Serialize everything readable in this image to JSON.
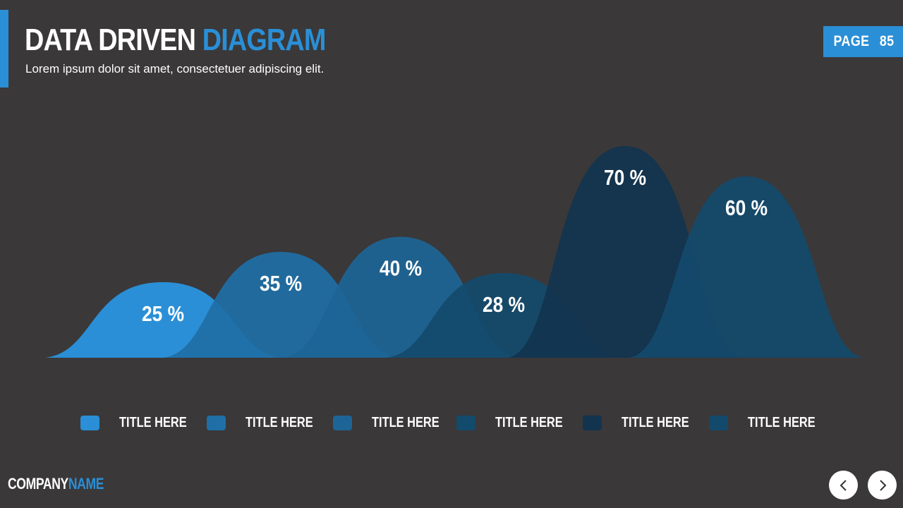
{
  "header": {
    "title_part1": "DATA DRIVEN",
    "title_part2": "DIAGRAM",
    "subtitle": "Lorem ipsum dolor sit amet, consectetuer adipiscing elit.",
    "page_label": "PAGE",
    "page_number": "85"
  },
  "chart_data": {
    "type": "area",
    "title": "",
    "ylim": [
      0,
      100
    ],
    "categories": [
      "TITLE HERE",
      "TITLE HERE",
      "TITLE HERE",
      "TITLE HERE",
      "TITLE HERE",
      "TITLE HERE"
    ],
    "values": [
      25,
      35,
      40,
      28,
      70,
      60
    ],
    "value_labels": [
      "25 %",
      "35 %",
      "40 %",
      "28 %",
      "70 %",
      "60 %"
    ],
    "colors": [
      "#2a8fd6",
      "#1f6fa6",
      "#1d6596",
      "#134b6d",
      "#12344f",
      "#134a6c"
    ],
    "grid": false,
    "legend_position": "bottom"
  },
  "legend": {
    "items": [
      {
        "label": "TITLE HERE",
        "color": "#2a8fd6"
      },
      {
        "label": "TITLE HERE",
        "color": "#1f6fa6"
      },
      {
        "label": "TITLE HERE",
        "color": "#1d6596"
      },
      {
        "label": "TITLE HERE",
        "color": "#134b6d"
      },
      {
        "label": "TITLE HERE",
        "color": "#12344f"
      },
      {
        "label": "TITLE HERE",
        "color": "#134a6c"
      }
    ]
  },
  "footer": {
    "company_part1": "COMPANY",
    "company_part2": "NAME",
    "prev_icon": "chevron-left-icon",
    "next_icon": "chevron-right-icon"
  }
}
